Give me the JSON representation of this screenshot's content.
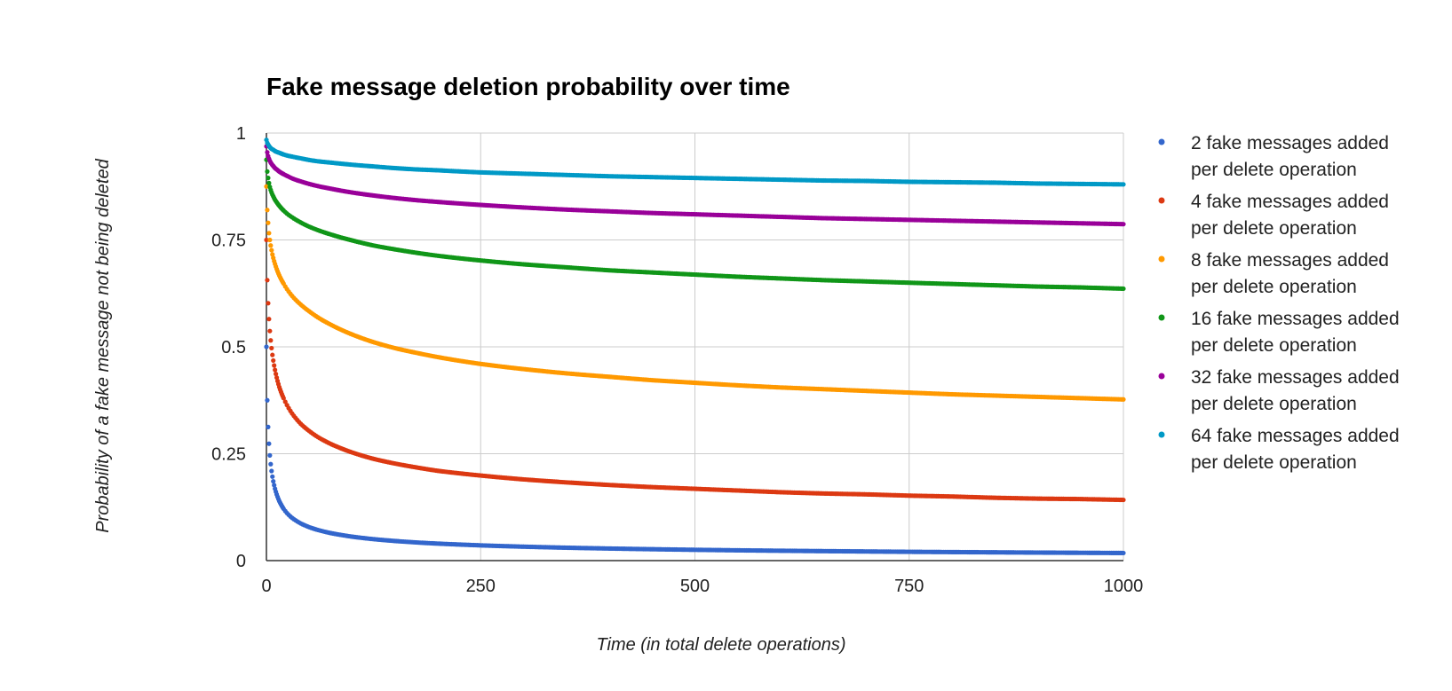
{
  "chart_data": {
    "type": "scatter",
    "title": "Fake message deletion probability over time",
    "xlabel": "Time (in total delete operations)",
    "ylabel": "Probability of a fake message not being deleted",
    "xlim": [
      0,
      1000
    ],
    "ylim": [
      0,
      1
    ],
    "x_ticks": [
      "0",
      "250",
      "500",
      "750",
      "1000"
    ],
    "y_ticks": [
      "0",
      "0.25",
      "0.5",
      "0.75",
      "1"
    ],
    "grid": true,
    "legend_position": "right",
    "x": [
      0,
      1,
      2,
      3,
      4,
      5,
      6,
      7,
      8,
      10,
      12,
      15,
      20,
      25,
      30,
      40,
      50,
      60,
      75,
      100,
      125,
      150,
      175,
      200,
      250,
      300,
      350,
      400,
      450,
      500,
      550,
      600,
      650,
      700,
      750,
      800,
      850,
      900,
      950,
      1000
    ],
    "series": [
      {
        "name": "2 fake messages added per delete operation",
        "legend_lines": [
          "2 fake messages added",
          "per delete operation"
        ],
        "color": "#3366cc",
        "values": [
          0.5,
          0.375,
          0.3125,
          0.2734,
          0.2461,
          0.2256,
          0.2095,
          0.1964,
          0.1855,
          0.1682,
          0.1548,
          0.1393,
          0.1212,
          0.1089,
          0.0998,
          0.087,
          0.0782,
          0.0717,
          0.0644,
          0.056,
          0.0502,
          0.0459,
          0.0425,
          0.0398,
          0.0357,
          0.0326,
          0.0302,
          0.0283,
          0.0267,
          0.0253,
          0.0241,
          0.0231,
          0.0222,
          0.0214,
          0.0206,
          0.02,
          0.0194,
          0.0188,
          0.0183,
          0.0178
        ]
      },
      {
        "name": "4 fake messages added per delete operation",
        "legend_lines": [
          "4 fake messages added",
          "per delete operation"
        ],
        "color": "#dc3912",
        "values": [
          0.75,
          0.656,
          0.602,
          0.565,
          0.537,
          0.515,
          0.497,
          0.481,
          0.468,
          0.446,
          0.428,
          0.406,
          0.38,
          0.36,
          0.344,
          0.32,
          0.303,
          0.289,
          0.273,
          0.253,
          0.238,
          0.227,
          0.218,
          0.21,
          0.199,
          0.19,
          0.183,
          0.177,
          0.172,
          0.168,
          0.164,
          0.16,
          0.157,
          0.155,
          0.152,
          0.15,
          0.147,
          0.145,
          0.144,
          0.142
        ]
      },
      {
        "name": "8 fake messages added per delete operation",
        "legend_lines": [
          "8 fake messages added",
          "per delete operation"
        ],
        "color": "#ff9900",
        "values": [
          0.875,
          0.82,
          0.79,
          0.766,
          0.75,
          0.737,
          0.726,
          0.716,
          0.708,
          0.694,
          0.682,
          0.667,
          0.648,
          0.632,
          0.619,
          0.599,
          0.583,
          0.569,
          0.552,
          0.529,
          0.511,
          0.497,
          0.486,
          0.476,
          0.46,
          0.448,
          0.438,
          0.43,
          0.422,
          0.416,
          0.41,
          0.405,
          0.401,
          0.397,
          0.393,
          0.389,
          0.386,
          0.383,
          0.38,
          0.377
        ]
      },
      {
        "name": "16 fake messages added per delete operation",
        "legend_lines": [
          "16 fake messages added",
          "per delete operation"
        ],
        "color": "#109618",
        "values": [
          0.9375,
          0.91,
          0.895,
          0.883,
          0.874,
          0.867,
          0.861,
          0.856,
          0.852,
          0.844,
          0.838,
          0.83,
          0.819,
          0.81,
          0.803,
          0.791,
          0.781,
          0.773,
          0.763,
          0.749,
          0.737,
          0.728,
          0.72,
          0.713,
          0.702,
          0.693,
          0.686,
          0.679,
          0.674,
          0.669,
          0.664,
          0.66,
          0.656,
          0.653,
          0.65,
          0.647,
          0.644,
          0.641,
          0.639,
          0.636
        ]
      },
      {
        "name": "32 fake messages added per delete operation",
        "legend_lines": [
          "32 fake messages added",
          "per delete operation"
        ],
        "color": "#990099",
        "values": [
          0.969,
          0.955,
          0.946,
          0.94,
          0.935,
          0.931,
          0.928,
          0.925,
          0.923,
          0.918,
          0.915,
          0.91,
          0.904,
          0.899,
          0.894,
          0.887,
          0.881,
          0.876,
          0.87,
          0.861,
          0.854,
          0.848,
          0.843,
          0.839,
          0.832,
          0.826,
          0.821,
          0.817,
          0.813,
          0.81,
          0.807,
          0.804,
          0.801,
          0.799,
          0.797,
          0.795,
          0.793,
          0.791,
          0.789,
          0.787
        ]
      },
      {
        "name": "64 fake messages added per delete operation",
        "legend_lines": [
          "64 fake messages added",
          "per delete operation"
        ],
        "color": "#0099c6",
        "values": [
          0.984,
          0.977,
          0.973,
          0.97,
          0.967,
          0.965,
          0.963,
          0.962,
          0.961,
          0.958,
          0.956,
          0.954,
          0.95,
          0.947,
          0.945,
          0.941,
          0.937,
          0.934,
          0.931,
          0.926,
          0.922,
          0.918,
          0.915,
          0.913,
          0.908,
          0.905,
          0.902,
          0.899,
          0.897,
          0.895,
          0.893,
          0.891,
          0.889,
          0.888,
          0.886,
          0.885,
          0.884,
          0.882,
          0.881,
          0.88
        ]
      }
    ]
  }
}
